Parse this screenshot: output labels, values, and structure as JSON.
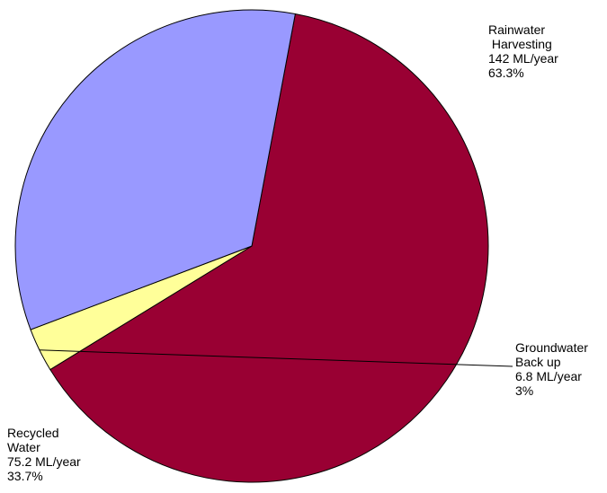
{
  "chart_data": {
    "type": "pie",
    "slices": [
      {
        "name": "Rainwater Harvesting",
        "value": 142,
        "unit": "ML/year",
        "percent": 63.3,
        "color": "#990033",
        "label_lines": [
          "Rainwater",
          " Harvesting",
          "142 ML/year",
          "63.3%"
        ]
      },
      {
        "name": "Groundwater Back up",
        "value": 6.8,
        "unit": "ML/year",
        "percent": 3,
        "color": "#ffff99",
        "label_lines": [
          "Groundwater",
          "Back up",
          "6.8 ML/year",
          "3%"
        ]
      },
      {
        "name": "Recycled Water",
        "value": 75.2,
        "unit": "ML/year",
        "percent": 33.7,
        "color": "#9999ff",
        "label_lines": [
          "Recycled",
          "Water",
          "75.2 ML/year",
          "33.7%"
        ]
      }
    ]
  }
}
